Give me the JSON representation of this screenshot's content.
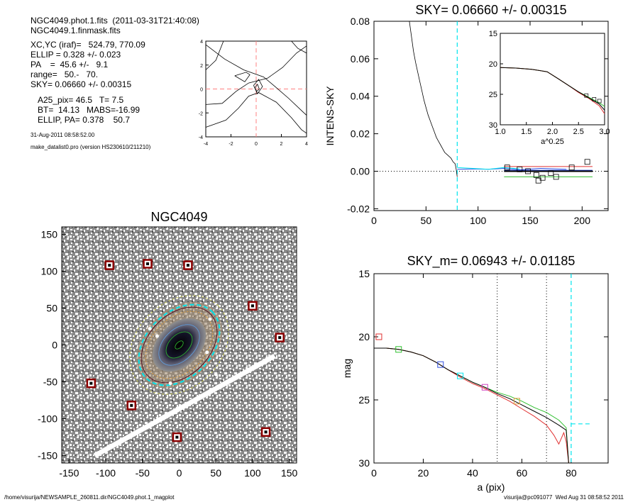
{
  "header": {
    "lines": [
      "NGC4049.phot.1.fits  (2011-03-31T21:40:08)",
      "NGC4049.1.finmask.fits"
    ],
    "params": [
      "XC,YC (iraf)=   524.79, 770.09",
      "ELLIP = 0.328 +/- 0.023",
      "PA    =  45.6 +/-   9.1",
      "range=   50.-   70.",
      "SKY= 0.06660 +/- 0.00315"
    ],
    "params2": [
      "A25_pix= 46.5   T= 7.5",
      "BT=  14.13   MABS=-16.99",
      "ELLIP, PA= 0.378    50.7"
    ],
    "date": "31-Aug-2011 08:58:52.00",
    "program": "make_datalist0.pro (version HS230610/211210)"
  },
  "footer": {
    "path": "/home/visurija/NEWSAMPLE_260811.dir/NGC4049.phot.1_magplot",
    "user": "visurija@pc091077  Wed Aug 31 08:58:52 2011"
  },
  "colors": {
    "cyan": "#00e5ee",
    "red": "#e03030",
    "green": "#30c030",
    "blue": "#3050e0",
    "magenta": "#d040c0",
    "orange": "#e0a040",
    "pink": "#ff8080"
  },
  "chart_data": [
    {
      "type": "line",
      "id": "contour",
      "xlim": [
        -4,
        4
      ],
      "ylim": [
        -4,
        4
      ],
      "xticks": [
        -4,
        -2,
        0,
        2,
        4
      ],
      "yticks": [
        -4,
        -2,
        0,
        2,
        4
      ]
    },
    {
      "type": "line",
      "id": "sky",
      "title": "SKY= 0.06660 +/- 0.00315",
      "xlabel": "",
      "ylabel": "INTENS-SKY",
      "xlim": [
        0,
        225
      ],
      "ylim": [
        -0.021,
        0.08
      ],
      "xticks": [
        0,
        50,
        100,
        150,
        200
      ],
      "yticks": [
        -0.02,
        0.0,
        0.02,
        0.04,
        0.06,
        0.08
      ],
      "ytick_labels": [
        "-0.02",
        "0.00",
        "0.02",
        "0.04",
        "0.06",
        "0.08"
      ],
      "vline_x": 80,
      "profile": [
        [
          34,
          0.08
        ],
        [
          36,
          0.072
        ],
        [
          38,
          0.064
        ],
        [
          40,
          0.058
        ],
        [
          42,
          0.053
        ],
        [
          44,
          0.048
        ],
        [
          46,
          0.043
        ],
        [
          48,
          0.038
        ],
        [
          50,
          0.034
        ],
        [
          52,
          0.03
        ],
        [
          54,
          0.027
        ],
        [
          56,
          0.024
        ],
        [
          58,
          0.021
        ],
        [
          60,
          0.018
        ],
        [
          62,
          0.016
        ],
        [
          64,
          0.014
        ],
        [
          66,
          0.012
        ],
        [
          68,
          0.01
        ],
        [
          70,
          0.009
        ],
        [
          72,
          0.008
        ],
        [
          74,
          0.007
        ],
        [
          76,
          0.005
        ],
        [
          78,
          0.004
        ],
        [
          79,
          0.001
        ],
        [
          80,
          -0.003
        ]
      ],
      "squares": [
        [
          128,
          0.002
        ],
        [
          140,
          0.001
        ],
        [
          148,
          0.0
        ],
        [
          156,
          -0.002
        ],
        [
          158,
          -0.005
        ],
        [
          162,
          -0.0035
        ],
        [
          170,
          -0.001
        ],
        [
          175,
          -0.003
        ],
        [
          190,
          0.002
        ],
        [
          205,
          0.005
        ]
      ],
      "inset": {
        "xlabel": "a^0.25",
        "xlim": [
          1.0,
          3.0
        ],
        "ylim": [
          15,
          30
        ],
        "xticks": [
          1.0,
          1.5,
          2.0,
          2.5,
          3.0
        ],
        "xtick_labels": [
          "1.0",
          "1.5",
          "2.0",
          "2.5",
          "3.0"
        ],
        "yticks": [
          15,
          20,
          25,
          30
        ],
        "series": [
          {
            "color": "#30c030",
            "values": [
              [
                1.0,
                20.6
              ],
              [
                1.3,
                20.7
              ],
              [
                1.6,
                20.9
              ],
              [
                1.9,
                21.3
              ],
              [
                2.1,
                22.4
              ],
              [
                2.3,
                23.5
              ],
              [
                2.5,
                24.6
              ],
              [
                2.7,
                25.5
              ],
              [
                2.9,
                26.4
              ],
              [
                3.0,
                27.0
              ]
            ]
          },
          {
            "color": "#e03030",
            "values": [
              [
                1.0,
                20.6
              ],
              [
                1.3,
                20.7
              ],
              [
                1.6,
                20.9
              ],
              [
                1.9,
                21.3
              ],
              [
                2.1,
                22.4
              ],
              [
                2.3,
                23.5
              ],
              [
                2.5,
                24.7
              ],
              [
                2.7,
                25.7
              ],
              [
                2.9,
                26.9
              ],
              [
                3.0,
                28.2
              ]
            ]
          },
          {
            "color": "#000000",
            "values": [
              [
                1.0,
                20.6
              ],
              [
                1.3,
                20.7
              ],
              [
                1.6,
                20.9
              ],
              [
                1.9,
                21.3
              ],
              [
                2.1,
                22.4
              ],
              [
                2.3,
                23.5
              ],
              [
                2.5,
                24.6
              ],
              [
                2.7,
                25.6
              ],
              [
                2.9,
                26.6
              ],
              [
                3.0,
                27.6
              ]
            ]
          }
        ]
      }
    },
    {
      "type": "heatmap",
      "id": "image",
      "title": "NGC4049",
      "xlim": [
        -160,
        160
      ],
      "ylim": [
        -160,
        160
      ],
      "xticks": [
        -150,
        -100,
        -50,
        0,
        50,
        100,
        150
      ],
      "yticks": [
        -150,
        -100,
        -50,
        0,
        50,
        100,
        150
      ],
      "markers": [
        [
          -95,
          108
        ],
        [
          -43,
          110
        ],
        [
          12,
          108
        ],
        [
          100,
          53
        ],
        [
          137,
          10
        ],
        [
          -120,
          -52
        ],
        [
          -65,
          -82
        ],
        [
          -3,
          -125
        ],
        [
          118,
          -118
        ]
      ]
    },
    {
      "type": "line",
      "id": "mag",
      "title": "SKY_m=  0.06943 +/- 0.01185",
      "xlabel": "a (pix)",
      "ylabel": "mag",
      "xlim": [
        0,
        95
      ],
      "ylim": [
        15,
        30
      ],
      "xticks": [
        0,
        20,
        40,
        60,
        80
      ],
      "yticks": [
        15,
        20,
        25,
        30
      ],
      "vlines": [
        50,
        70
      ],
      "cyan_vline": 80,
      "series": [
        {
          "color": "#30c030",
          "values": [
            [
              0,
              20.9
            ],
            [
              5,
              20.9
            ],
            [
              10,
              21.0
            ],
            [
              15,
              21.2
            ],
            [
              20,
              21.5
            ],
            [
              25,
              22.0
            ],
            [
              30,
              22.6
            ],
            [
              35,
              23.1
            ],
            [
              40,
              23.6
            ],
            [
              45,
              24.0
            ],
            [
              50,
              24.4
            ],
            [
              55,
              24.7
            ],
            [
              60,
              25.1
            ],
            [
              65,
              25.6
            ],
            [
              70,
              26.0
            ],
            [
              75,
              26.6
            ],
            [
              78,
              27.2
            ],
            [
              79,
              30.0
            ]
          ]
        },
        {
          "color": "#e03030",
          "values": [
            [
              0,
              20.9
            ],
            [
              5,
              20.9
            ],
            [
              10,
              21.0
            ],
            [
              15,
              21.2
            ],
            [
              20,
              21.5
            ],
            [
              25,
              22.0
            ],
            [
              30,
              22.6
            ],
            [
              35,
              23.2
            ],
            [
              40,
              23.7
            ],
            [
              45,
              24.1
            ],
            [
              50,
              24.6
            ],
            [
              55,
              25.1
            ],
            [
              60,
              25.7
            ],
            [
              65,
              26.3
            ],
            [
              70,
              27.0
            ],
            [
              73,
              27.8
            ],
            [
              75,
              28.5
            ],
            [
              77,
              27.6
            ],
            [
              78,
              28.3
            ],
            [
              79,
              30.0
            ]
          ]
        },
        {
          "color": "#000000",
          "values": [
            [
              0,
              20.9
            ],
            [
              5,
              20.9
            ],
            [
              10,
              21.0
            ],
            [
              15,
              21.2
            ],
            [
              20,
              21.5
            ],
            [
              25,
              22.0
            ],
            [
              30,
              22.6
            ],
            [
              35,
              23.1
            ],
            [
              40,
              23.6
            ],
            [
              45,
              24.0
            ],
            [
              50,
              24.5
            ],
            [
              55,
              24.9
            ],
            [
              60,
              25.4
            ],
            [
              65,
              25.9
            ],
            [
              70,
              26.4
            ],
            [
              75,
              27.0
            ],
            [
              78,
              27.4
            ],
            [
              79,
              30.0
            ]
          ]
        }
      ],
      "markers": [
        {
          "x": 2,
          "y": 20.0,
          "color": "#e03030"
        },
        {
          "x": 10,
          "y": 21.0,
          "color": "#30c030"
        },
        {
          "x": 27,
          "y": 22.2,
          "color": "#3050e0"
        },
        {
          "x": 35,
          "y": 23.1,
          "color": "#00e5ee"
        },
        {
          "x": 45,
          "y": 24.0,
          "color": "#d040c0"
        },
        {
          "x": 58,
          "y": 25.1,
          "color": "#e0a040"
        }
      ],
      "cyan_tail": [
        [
          80,
          26.9
        ],
        [
          88,
          26.9
        ]
      ]
    }
  ]
}
